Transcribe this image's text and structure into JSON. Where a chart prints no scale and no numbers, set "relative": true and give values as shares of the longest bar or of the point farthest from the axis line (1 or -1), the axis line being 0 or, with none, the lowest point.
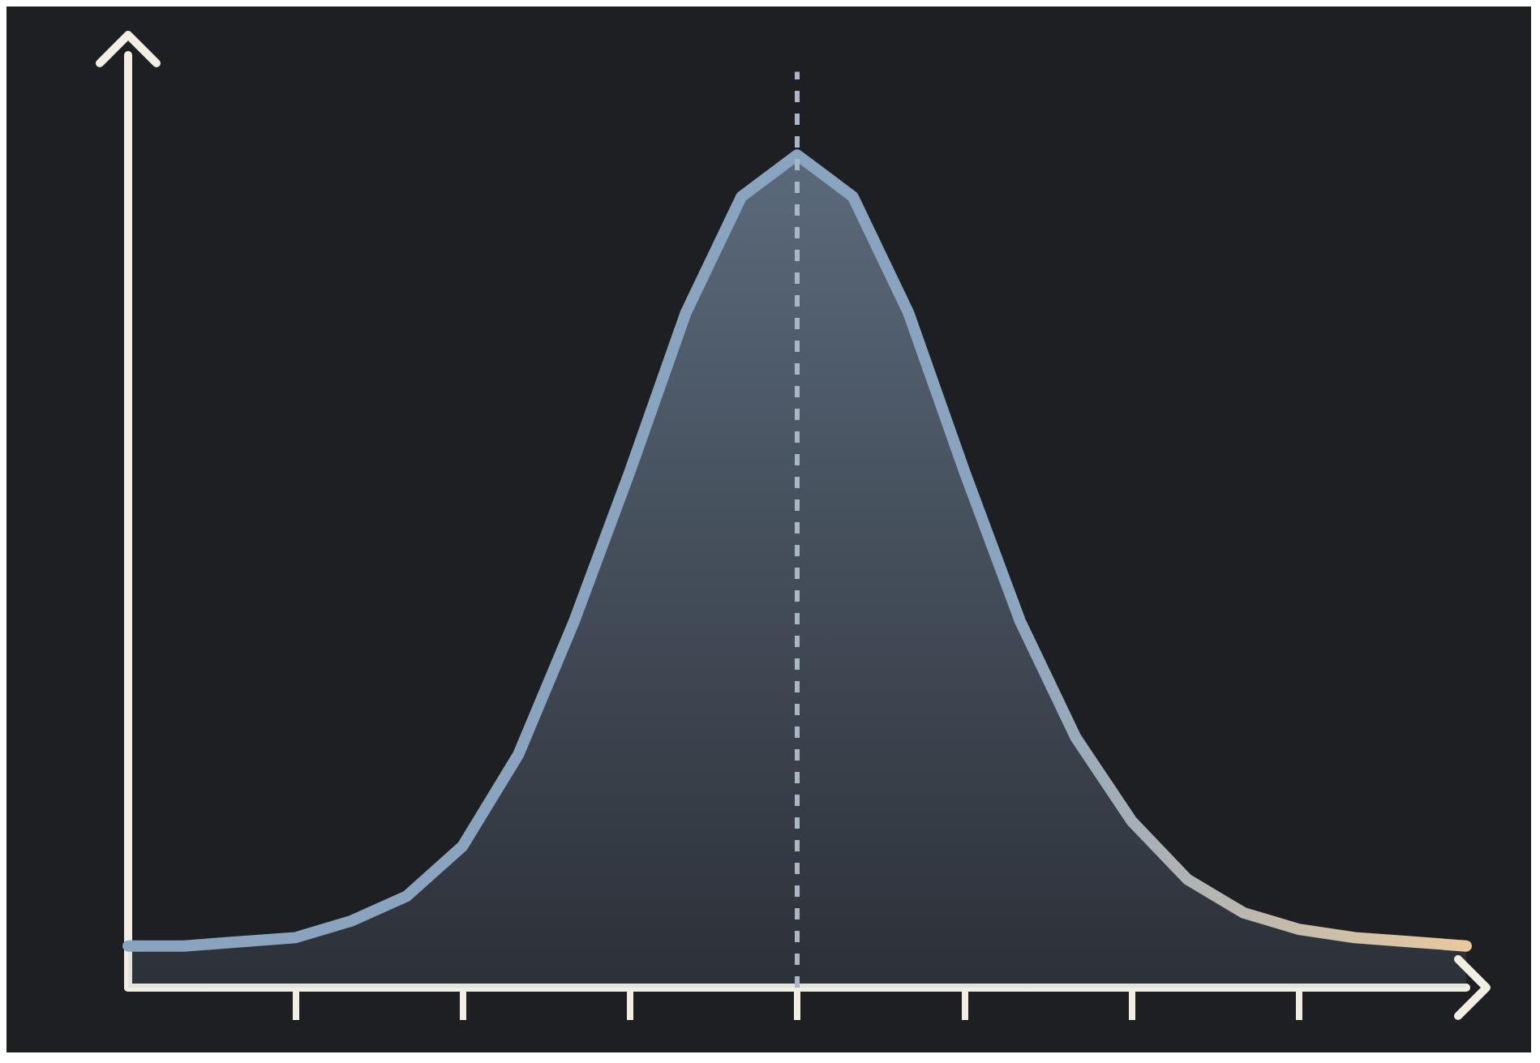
{
  "chart_data": {
    "type": "area",
    "relative": true,
    "categories": [
      null,
      null,
      null,
      null,
      null,
      null,
      null,
      null,
      null,
      null,
      null,
      null,
      null,
      null,
      null,
      null,
      null,
      null,
      null,
      null,
      null,
      null,
      null,
      null,
      null
    ],
    "series": [
      {
        "color": "#8aa4c0",
        "values": [
          0.05,
          0.05,
          0.055,
          0.06,
          0.08,
          0.11,
          0.17,
          0.28,
          0.44,
          0.62,
          0.81,
          0.95,
          1.0,
          0.95,
          0.81,
          0.62,
          0.44,
          0.3,
          0.2,
          0.13,
          0.09,
          0.07,
          0.06,
          0.055,
          0.05
        ]
      }
    ],
    "ref_lines": [
      {
        "axis": "x",
        "color": "#a9b6c4",
        "line_style": "dashed"
      }
    ]
  }
}
